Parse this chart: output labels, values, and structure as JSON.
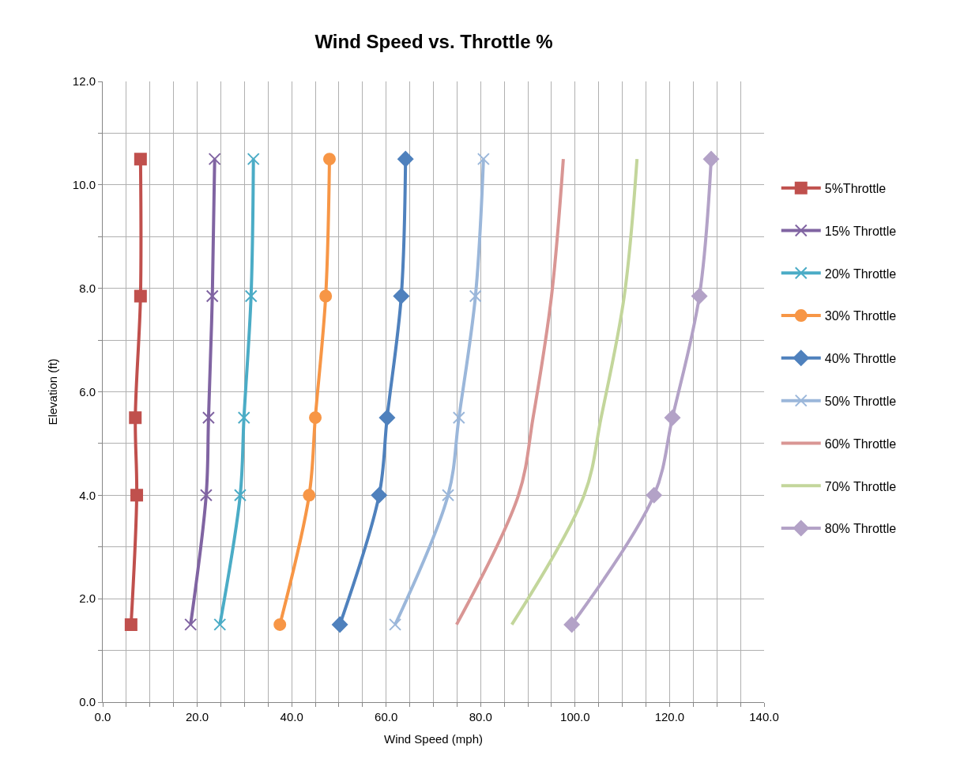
{
  "chart_data": {
    "type": "line",
    "title": "Wind Speed vs. Throttle %",
    "xlabel": "Wind Speed (mph)",
    "ylabel": "Elevation (ft)",
    "xlim": [
      0,
      140
    ],
    "ylim": [
      0,
      12
    ],
    "xticks": [
      {
        "value": 0,
        "label": "0.0"
      },
      {
        "value": 5,
        "label": null
      },
      {
        "value": 10,
        "label": null
      },
      {
        "value": 15,
        "label": null
      },
      {
        "value": 20,
        "label": "20.0"
      },
      {
        "value": 25,
        "label": null
      },
      {
        "value": 30,
        "label": null
      },
      {
        "value": 35,
        "label": null
      },
      {
        "value": 40,
        "label": "40.0"
      },
      {
        "value": 45,
        "label": null
      },
      {
        "value": 50,
        "label": null
      },
      {
        "value": 55,
        "label": null
      },
      {
        "value": 60,
        "label": "60.0"
      },
      {
        "value": 65,
        "label": null
      },
      {
        "value": 70,
        "label": null
      },
      {
        "value": 75,
        "label": null
      },
      {
        "value": 80,
        "label": "80.0"
      },
      {
        "value": 85,
        "label": null
      },
      {
        "value": 90,
        "label": null
      },
      {
        "value": 95,
        "label": null
      },
      {
        "value": 100,
        "label": "100.0"
      },
      {
        "value": 105,
        "label": null
      },
      {
        "value": 110,
        "label": null
      },
      {
        "value": 115,
        "label": null
      },
      {
        "value": 120,
        "label": "120.0"
      },
      {
        "value": 125,
        "label": null
      },
      {
        "value": 130,
        "label": null
      },
      {
        "value": 135,
        "label": null
      },
      {
        "value": 140,
        "label": "140.0"
      }
    ],
    "yticks": [
      {
        "value": 0,
        "label": "0.0"
      },
      {
        "value": 1,
        "label": null
      },
      {
        "value": 2,
        "label": "2.0"
      },
      {
        "value": 3,
        "label": null
      },
      {
        "value": 4,
        "label": "4.0"
      },
      {
        "value": 5,
        "label": null
      },
      {
        "value": 6,
        "label": "6.0"
      },
      {
        "value": 7,
        "label": null
      },
      {
        "value": 8,
        "label": "8.0"
      },
      {
        "value": 9,
        "label": null
      },
      {
        "value": 10,
        "label": "10.0"
      },
      {
        "value": 11,
        "label": null
      },
      {
        "value": 12,
        "label": "12.0"
      }
    ],
    "grid": true,
    "legend": "right",
    "line_style": "solid",
    "series": [
      {
        "name": "5%Throttle",
        "color": "#c0504d",
        "marker": "square",
        "x": [
          6.0,
          7.2,
          6.9,
          8.0,
          8.0
        ],
        "values": [
          1.5,
          4.0,
          5.5,
          7.85,
          10.5
        ]
      },
      {
        "name": "15% Throttle",
        "color": "#8064a2",
        "marker": "cross",
        "x": [
          18.6,
          21.9,
          22.4,
          23.2,
          23.7
        ],
        "values": [
          1.5,
          4.0,
          5.5,
          7.85,
          10.5
        ]
      },
      {
        "name": "20% Throttle",
        "color": "#4bacc6",
        "marker": "cross",
        "x": [
          24.8,
          29.1,
          29.9,
          31.4,
          31.9
        ],
        "values": [
          1.5,
          4.0,
          5.5,
          7.85,
          10.5
        ]
      },
      {
        "name": "30% Throttle",
        "color": "#f79646",
        "marker": "circle",
        "x": [
          37.5,
          43.7,
          45.0,
          47.2,
          48.0
        ],
        "values": [
          1.5,
          4.0,
          5.5,
          7.85,
          10.5
        ]
      },
      {
        "name": "40% Throttle",
        "color": "#4f81bd",
        "marker": "diamond",
        "x": [
          50.2,
          58.5,
          60.2,
          63.2,
          64.1
        ],
        "values": [
          1.5,
          4.0,
          5.5,
          7.85,
          10.5
        ]
      },
      {
        "name": "50% Throttle",
        "color": "#9bb7da",
        "marker": "cross",
        "x": [
          61.9,
          73.1,
          75.4,
          78.9,
          80.6
        ],
        "values": [
          1.5,
          4.0,
          5.5,
          7.85,
          10.5
        ]
      },
      {
        "name": "60% Throttle",
        "color": "#d99694",
        "marker": "none",
        "x": [
          74.9,
          88.0,
          91.1,
          95.0,
          97.5
        ],
        "values": [
          1.5,
          4.0,
          5.5,
          7.85,
          10.5
        ]
      },
      {
        "name": "70% Throttle",
        "color": "#c3d69b",
        "marker": "none",
        "x": [
          86.6,
          101.9,
          105.5,
          110.4,
          113.1
        ],
        "values": [
          1.5,
          4.0,
          5.5,
          7.85,
          10.5
        ]
      },
      {
        "name": "80% Throttle",
        "color": "#b3a2c7",
        "marker": "diamond",
        "x": [
          99.3,
          116.7,
          120.6,
          126.3,
          128.8
        ],
        "values": [
          1.5,
          4.0,
          5.5,
          7.85,
          10.5
        ]
      }
    ]
  }
}
